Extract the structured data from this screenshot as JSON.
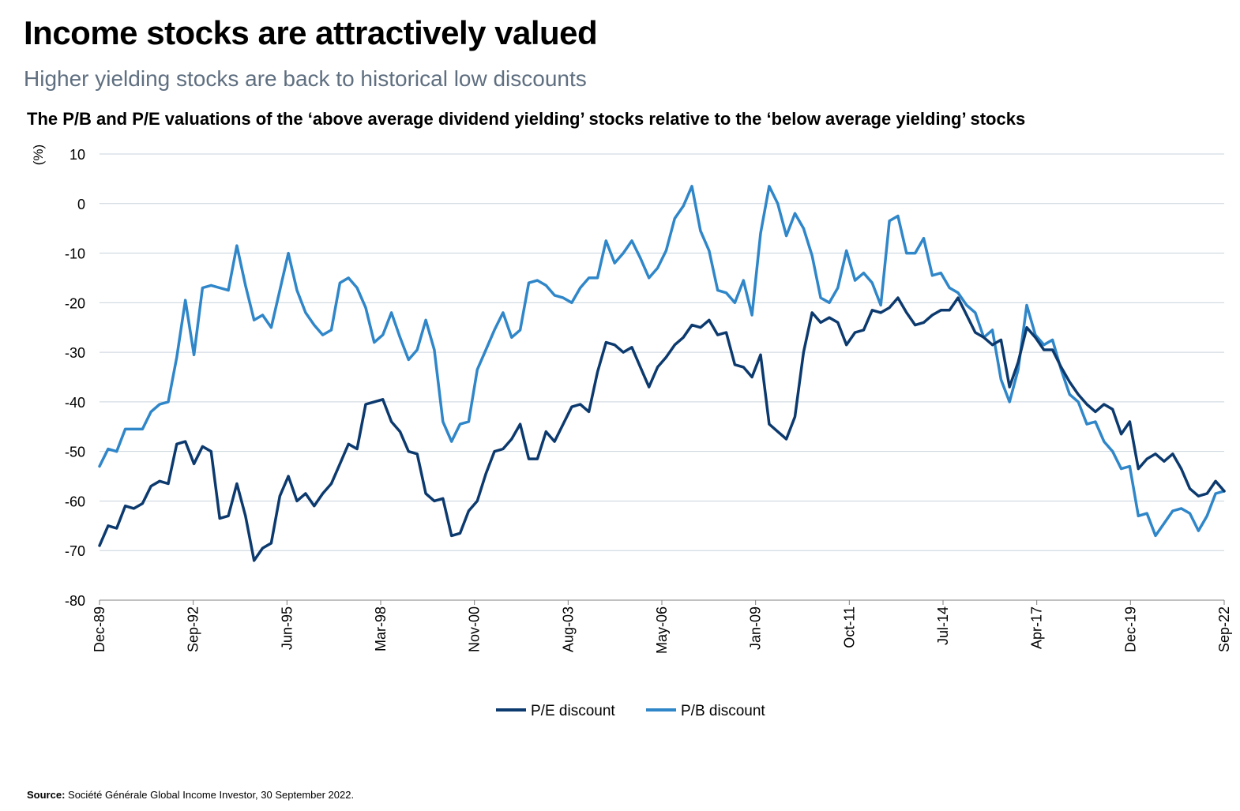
{
  "title": "Income stocks are attractively valued",
  "subtitle": "Higher yielding stocks are back to historical low discounts",
  "source": {
    "label": "Source:",
    "text": "Société Générale Global Income Investor, 30 September 2022."
  },
  "colors": {
    "pe": "#0c3a6e",
    "pb": "#2f86c8",
    "grid": "#c9d3dc",
    "axis": "#808080"
  },
  "chart_data": {
    "type": "line",
    "title": "The P/B and P/E valuations of the ‘above average dividend yielding’ stocks relative to the ‘below average yielding’ stocks",
    "ylabel": "(%)",
    "ylim": [
      -80,
      10
    ],
    "yticks": [
      10,
      0,
      -10,
      -20,
      -30,
      -40,
      -50,
      -60,
      -70,
      -80
    ],
    "xlabels": [
      "Dec-89",
      "Sep-92",
      "Jun-95",
      "Mar-98",
      "Nov-00",
      "Aug-03",
      "May-06",
      "Jan-09",
      "Oct-11",
      "Jul-14",
      "Apr-17",
      "Dec-19",
      "Sep-22"
    ],
    "grid": true,
    "legend_position": "bottom",
    "series": [
      {
        "name": "P/E discount",
        "values": [
          -69,
          -65,
          -65.5,
          -61,
          -61.5,
          -60.5,
          -57,
          -56,
          -56.5,
          -48.5,
          -48,
          -52.5,
          -49,
          -50,
          -63.5,
          -63,
          -56.5,
          -63,
          -72,
          -69.5,
          -68.5,
          -59,
          -55,
          -60,
          -58.5,
          -61,
          -58.5,
          -56.5,
          -52.5,
          -48.5,
          -49.5,
          -40.5,
          -40,
          -39.5,
          -44,
          -46,
          -50,
          -50.5,
          -58.5,
          -60,
          -59.5,
          -67,
          -66.5,
          -62,
          -60,
          -54.5,
          -50,
          -49.5,
          -47.5,
          -44.5,
          -51.5,
          -51.5,
          -46,
          -48,
          -44.5,
          -41,
          -40.5,
          -42,
          -34,
          -28,
          -28.5,
          -30,
          -29,
          -33,
          -37,
          -33,
          -31,
          -28.5,
          -27,
          -24.5,
          -25,
          -23.5,
          -26.5,
          -26,
          -32.5,
          -33,
          -35,
          -30.5,
          -44.5,
          -46,
          -47.5,
          -43,
          -30,
          -22,
          -24,
          -23,
          -24,
          -28.5,
          -26,
          -25.5,
          -21.5,
          -22,
          -21,
          -19,
          -22,
          -24.5,
          -24,
          -22.5,
          -21.5,
          -21.5,
          -19,
          -22.5,
          -26,
          -27,
          -28.5,
          -27.5,
          -37,
          -32,
          -25,
          -27,
          -29.5,
          -29.5,
          -33,
          -36,
          -38.5,
          -40.5,
          -42,
          -40.5,
          -41.5,
          -46.5,
          -44,
          -53.5,
          -51.5,
          -50.5,
          -52,
          -50.5,
          -53.5,
          -57.5,
          -59,
          -58.5,
          -56,
          -58
        ]
      },
      {
        "name": "P/B discount",
        "values": [
          -53,
          -49.5,
          -50,
          -45.5,
          -45.5,
          -45.5,
          -42,
          -40.5,
          -40,
          -31,
          -19.5,
          -30.5,
          -17,
          -16.5,
          -17,
          -17.5,
          -8.5,
          -16.5,
          -23.5,
          -22.5,
          -25,
          -17.5,
          -10,
          -17.5,
          -22,
          -24.5,
          -26.5,
          -25.5,
          -16,
          -15,
          -17,
          -21,
          -28,
          -26.5,
          -22,
          -27,
          -31.5,
          -29.5,
          -23.5,
          -29.5,
          -44,
          -48,
          -44.5,
          -44,
          -33.5,
          -29.5,
          -25.5,
          -22,
          -27,
          -25.5,
          -16,
          -15.5,
          -16.5,
          -18.5,
          -19,
          -20,
          -17,
          -15,
          -15,
          -7.5,
          -12,
          -10,
          -7.5,
          -11,
          -15,
          -13,
          -9.5,
          -3,
          -0.5,
          3.5,
          -5.5,
          -9.5,
          -17.5,
          -18,
          -20,
          -15.5,
          -22.5,
          -6,
          3.5,
          0,
          -6.5,
          -2,
          -5,
          -10.5,
          -19,
          -20,
          -17,
          -9.5,
          -15.5,
          -14,
          -16,
          -20.5,
          -3.5,
          -2.5,
          -10,
          -10,
          -7,
          -14.5,
          -14,
          -17,
          -18,
          -20.5,
          -22,
          -27,
          -25.5,
          -35.5,
          -40,
          -33.5,
          -20.5,
          -26.5,
          -28.5,
          -27.5,
          -33.5,
          -38.5,
          -40,
          -44.5,
          -44,
          -48,
          -50,
          -53.5,
          -53,
          -63,
          -62.5,
          -67,
          -64.5,
          -62,
          -61.5,
          -62.5,
          -66,
          -63,
          -58.5,
          -58
        ]
      }
    ]
  }
}
